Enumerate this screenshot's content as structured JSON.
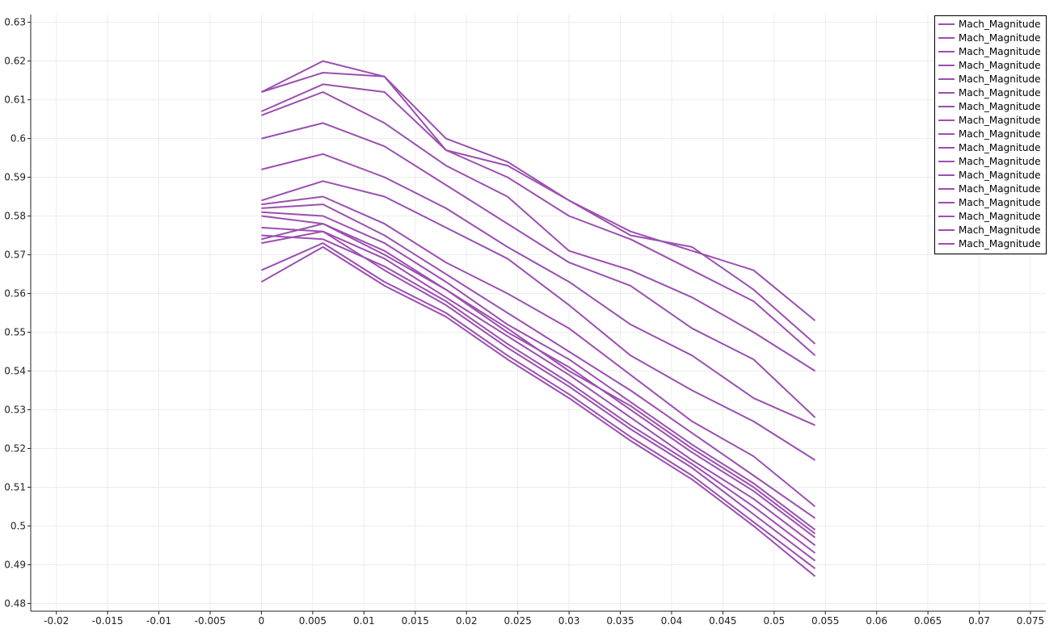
{
  "chart_data": {
    "type": "line",
    "title": "",
    "xlabel": "",
    "ylabel": "",
    "xlim": [
      -0.0225,
      0.0765
    ],
    "ylim": [
      0.478,
      0.632
    ],
    "x_ticks": [
      -0.02,
      -0.015,
      -0.01,
      -0.005,
      0,
      0.005,
      0.01,
      0.015,
      0.02,
      0.025,
      0.03,
      0.035,
      0.04,
      0.045,
      0.05,
      0.055,
      0.06,
      0.065,
      0.07,
      0.075
    ],
    "x_tick_labels": [
      "-0.02",
      "-0.015",
      "-0.01",
      "-0.005",
      "0",
      "0.005",
      "0.01",
      "0.015",
      "0.02",
      "0.025",
      "0.03",
      "0.035",
      "0.04",
      "0.045",
      "0.05",
      "0.055",
      "0.06",
      "0.065",
      "0.07",
      "0.075"
    ],
    "y_ticks": [
      0.48,
      0.49,
      0.5,
      0.51,
      0.52,
      0.53,
      0.54,
      0.55,
      0.56,
      0.57,
      0.58,
      0.59,
      0.6,
      0.61,
      0.62,
      0.63
    ],
    "y_tick_labels": [
      "0.48",
      "0.49",
      "0.5",
      "0.51",
      "0.52",
      "0.53",
      "0.54",
      "0.55",
      "0.56",
      "0.57",
      "0.58",
      "0.59",
      "0.6",
      "0.61",
      "0.62",
      "0.63"
    ],
    "grid": true,
    "legend_position": "top-right",
    "series_color": "#9b4fb0",
    "x": [
      0,
      0.006,
      0.012,
      0.018,
      0.024,
      0.03,
      0.036,
      0.042,
      0.048,
      0.054
    ],
    "series": [
      {
        "name": "Mach_Magnitude",
        "values": [
          0.612,
          0.62,
          0.616,
          0.597,
          0.593,
          0.584,
          0.576,
          0.571,
          0.566,
          0.553
        ]
      },
      {
        "name": "Mach_Magnitude",
        "values": [
          0.612,
          0.617,
          0.616,
          0.6,
          0.594,
          0.584,
          0.575,
          0.572,
          0.561,
          0.547
        ]
      },
      {
        "name": "Mach_Magnitude",
        "values": [
          0.607,
          0.614,
          0.612,
          0.597,
          0.59,
          0.58,
          0.574,
          0.566,
          0.558,
          0.544
        ]
      },
      {
        "name": "Mach_Magnitude",
        "values": [
          0.606,
          0.612,
          0.604,
          0.593,
          0.585,
          0.571,
          0.566,
          0.559,
          0.55,
          0.54
        ]
      },
      {
        "name": "Mach_Magnitude",
        "values": [
          0.6,
          0.604,
          0.598,
          0.588,
          0.578,
          0.568,
          0.562,
          0.551,
          0.543,
          0.528
        ]
      },
      {
        "name": "Mach_Magnitude",
        "values": [
          0.592,
          0.596,
          0.59,
          0.582,
          0.572,
          0.563,
          0.552,
          0.544,
          0.533,
          0.526
        ]
      },
      {
        "name": "Mach_Magnitude",
        "values": [
          0.584,
          0.589,
          0.585,
          0.577,
          0.569,
          0.557,
          0.544,
          0.535,
          0.527,
          0.517
        ]
      },
      {
        "name": "Mach_Magnitude",
        "values": [
          0.583,
          0.585,
          0.578,
          0.568,
          0.56,
          0.551,
          0.539,
          0.527,
          0.518,
          0.505
        ]
      },
      {
        "name": "Mach_Magnitude",
        "values": [
          0.582,
          0.583,
          0.575,
          0.565,
          0.555,
          0.545,
          0.535,
          0.524,
          0.513,
          0.502
        ]
      },
      {
        "name": "Mach_Magnitude",
        "values": [
          0.581,
          0.58,
          0.573,
          0.563,
          0.552,
          0.543,
          0.532,
          0.521,
          0.511,
          0.499
        ]
      },
      {
        "name": "Mach_Magnitude",
        "values": [
          0.58,
          0.578,
          0.571,
          0.561,
          0.55,
          0.541,
          0.53,
          0.519,
          0.509,
          0.497
        ]
      },
      {
        "name": "Mach_Magnitude",
        "values": [
          0.577,
          0.576,
          0.569,
          0.559,
          0.549,
          0.539,
          0.528,
          0.517,
          0.507,
          0.495
        ]
      },
      {
        "name": "Mach_Magnitude",
        "values": [
          0.575,
          0.574,
          0.567,
          0.558,
          0.547,
          0.537,
          0.526,
          0.516,
          0.505,
          0.493
        ]
      },
      {
        "name": "Mach_Magnitude",
        "values": [
          0.574,
          0.578,
          0.57,
          0.561,
          0.551,
          0.54,
          0.531,
          0.52,
          0.51,
          0.498
        ]
      },
      {
        "name": "Mach_Magnitude",
        "values": [
          0.573,
          0.576,
          0.566,
          0.557,
          0.546,
          0.536,
          0.525,
          0.515,
          0.503,
          0.491
        ]
      },
      {
        "name": "Mach_Magnitude",
        "values": [
          0.566,
          0.573,
          0.563,
          0.555,
          0.544,
          0.534,
          0.523,
          0.513,
          0.501,
          0.489
        ]
      },
      {
        "name": "Mach_Magnitude",
        "values": [
          0.563,
          0.572,
          0.562,
          0.554,
          0.543,
          0.533,
          0.522,
          0.512,
          0.5,
          0.487
        ]
      }
    ]
  }
}
